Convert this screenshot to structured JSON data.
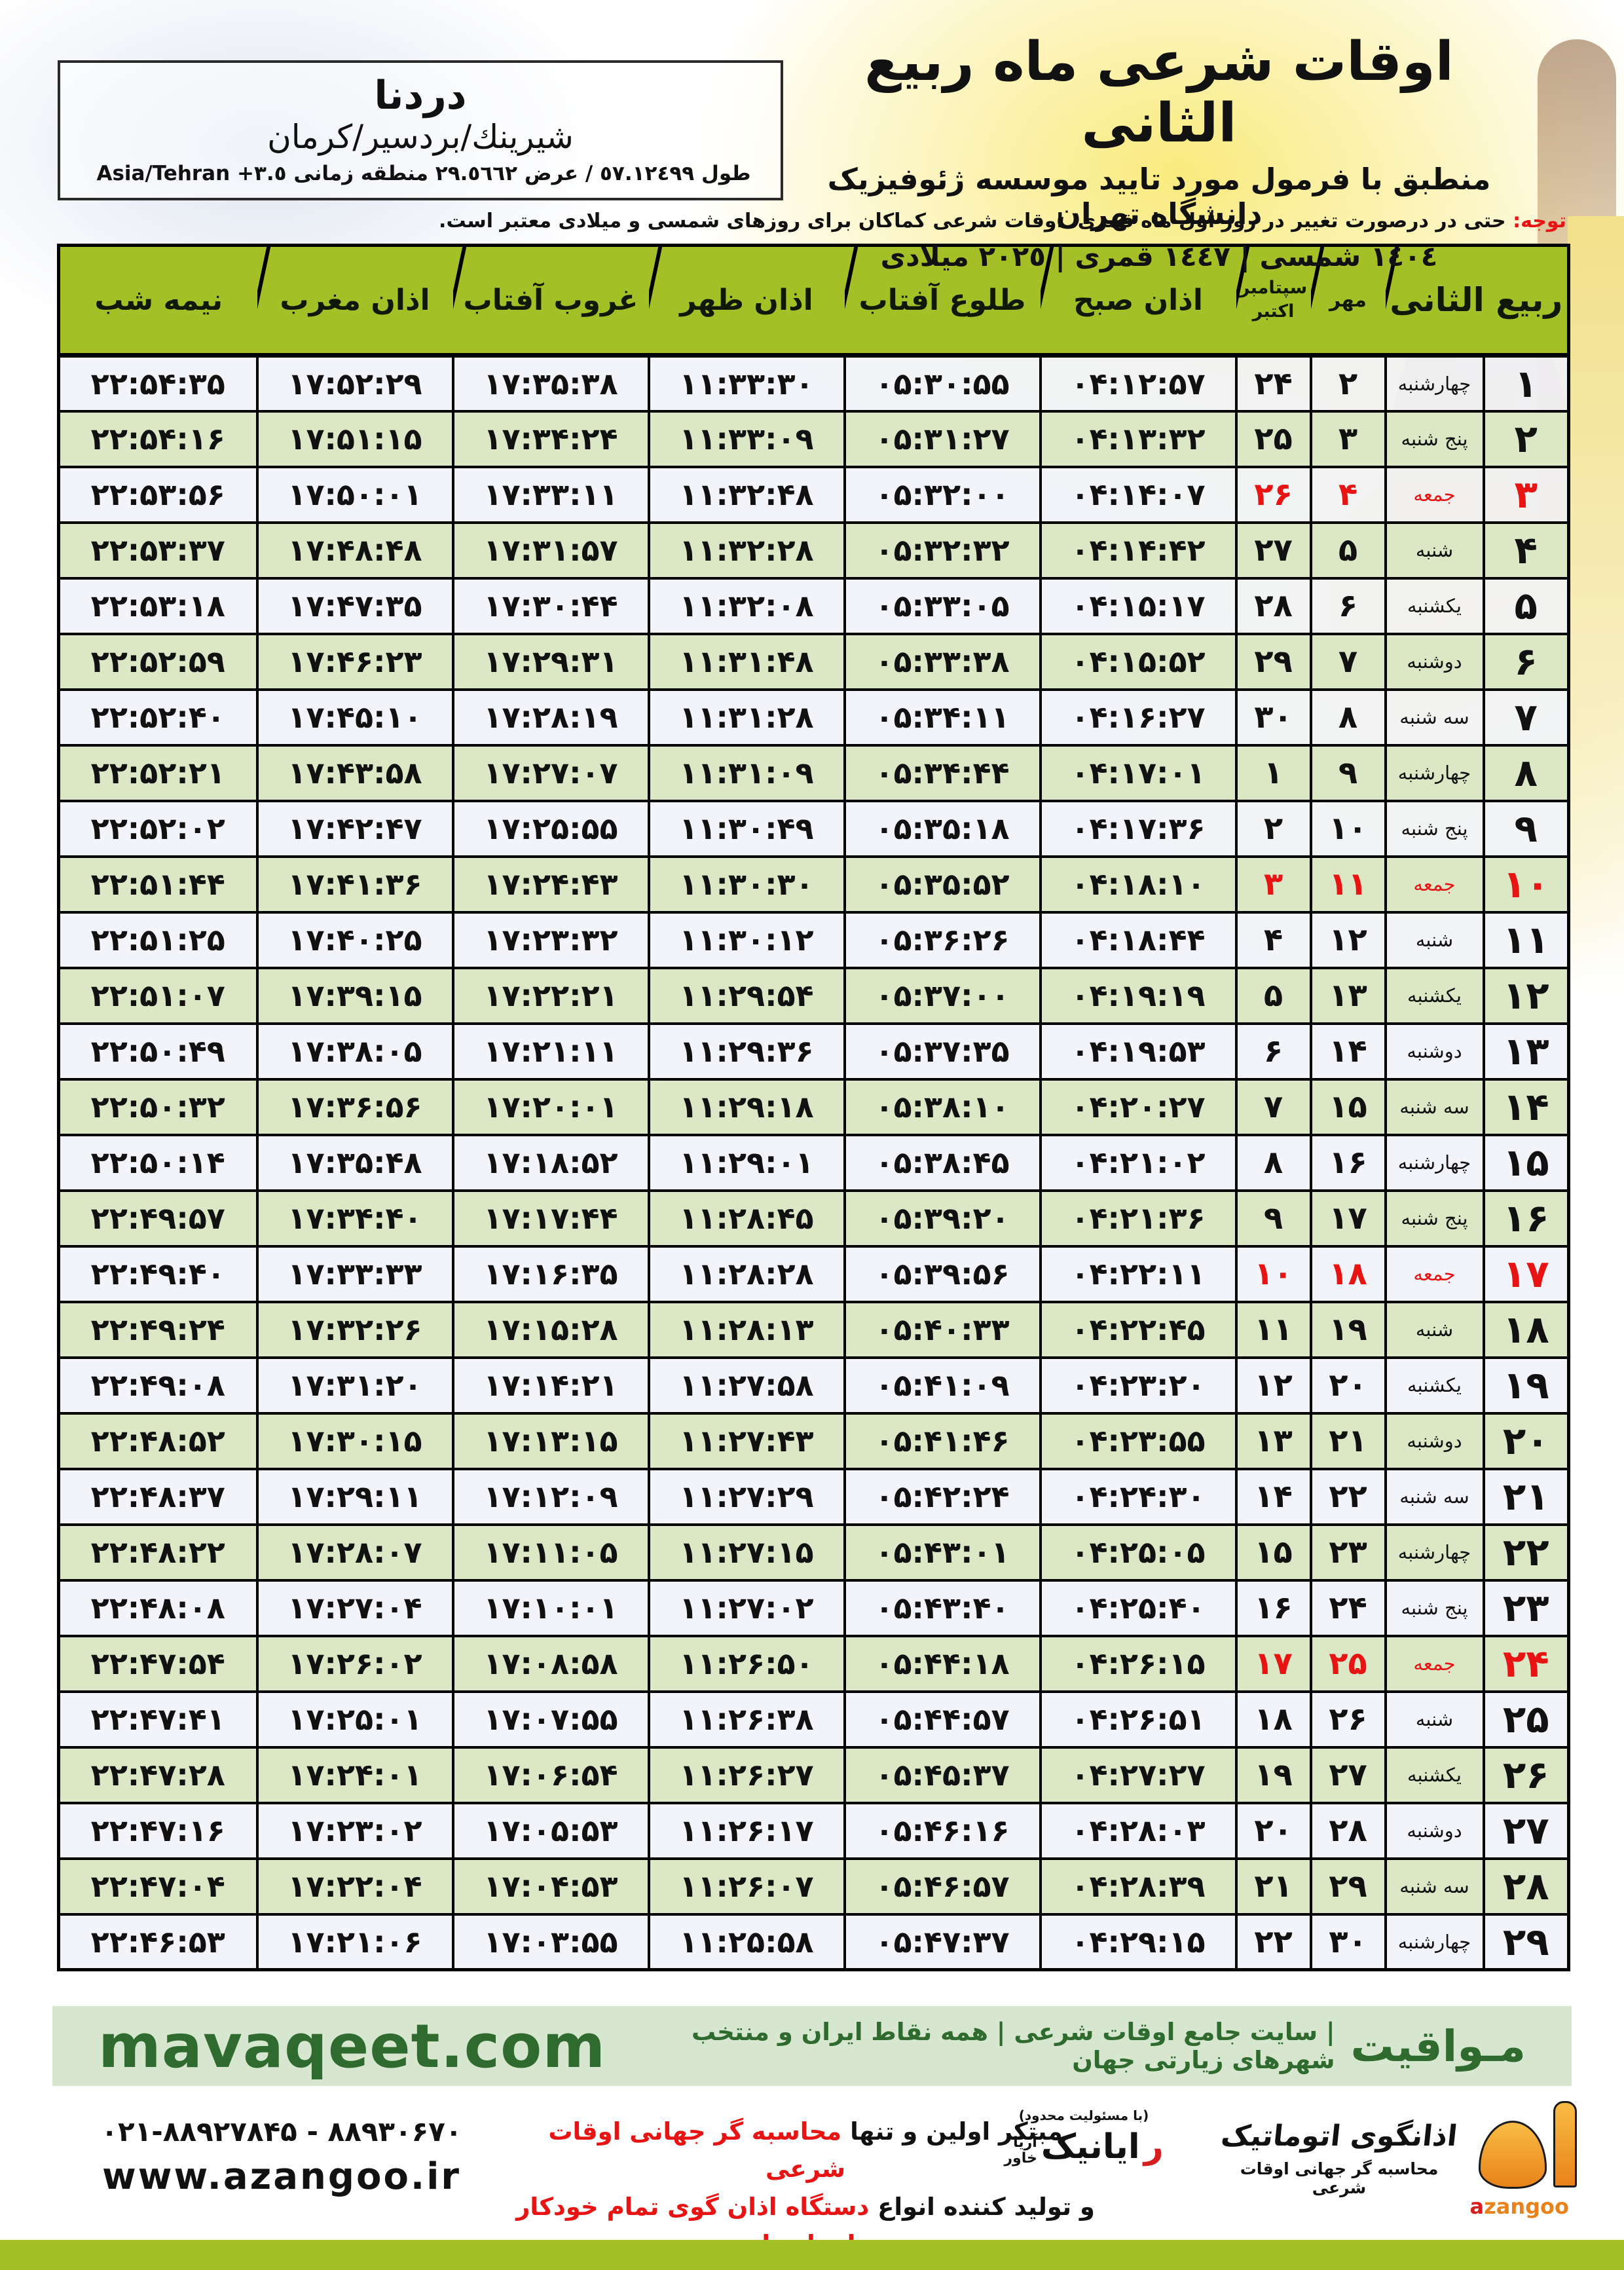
{
  "header": {
    "title": "اوقات شرعی ماه ربیع الثانی",
    "subtitle": "منطبق با فرمول مورد تایید موسسه ژئوفیزیک دانشگاه تهران",
    "date_line": "١٤٠٤ شمسی | ١٤٤٧ قمری | ٢٠٢٥ میلادی"
  },
  "location_box": {
    "name": "دردنا",
    "region": "شیرینك/بردسیر/کرمان",
    "coords": "طول ٥٧.١٢٤٩٩ / عرض ٢٩.٥٦٦٢ منطقه زمانی",
    "timezone": "Asia/Tehran +٣.٥"
  },
  "notice": {
    "label": "توجه:",
    "text": " حتی در درصورت تغییر در روز اول ماه قمری، اوقات شرعی کماکان برای روزهای شمسی و میلادی معتبر است."
  },
  "table": {
    "headers": {
      "rabi": "ربیع الثانی",
      "mehr": "مهر",
      "sep": "سپتامبر",
      "oct": "اکتبر",
      "azan_sobh": "اذان صبح",
      "tolu": "طلوع آفتاب",
      "zohr": "اذان ظهر",
      "ghorub": "غروب آفتاب",
      "maghreb": "اذان مغرب",
      "nimeshab": "نیمه شب"
    },
    "rows": [
      {
        "day": 1,
        "weekday": "چهارشنبه",
        "mehr": 2,
        "greg": 24,
        "sobh": "04:12:57",
        "tolu": "05:30:55",
        "zohr": "11:33:30",
        "ghorub": "17:35:38",
        "maghreb": "17:52:29",
        "nimeshab": "22:54:35",
        "friday": false
      },
      {
        "day": 2,
        "weekday": "پنج شنبه",
        "mehr": 3,
        "greg": 25,
        "sobh": "04:13:32",
        "tolu": "05:31:27",
        "zohr": "11:33:09",
        "ghorub": "17:34:24",
        "maghreb": "17:51:15",
        "nimeshab": "22:54:16",
        "friday": false
      },
      {
        "day": 3,
        "weekday": "جمعه",
        "mehr": 4,
        "greg": 26,
        "sobh": "04:14:07",
        "tolu": "05:32:00",
        "zohr": "11:32:48",
        "ghorub": "17:33:11",
        "maghreb": "17:50:01",
        "nimeshab": "22:53:56",
        "friday": true
      },
      {
        "day": 4,
        "weekday": "شنبه",
        "mehr": 5,
        "greg": 27,
        "sobh": "04:14:42",
        "tolu": "05:32:32",
        "zohr": "11:32:28",
        "ghorub": "17:31:57",
        "maghreb": "17:48:48",
        "nimeshab": "22:53:37",
        "friday": false
      },
      {
        "day": 5,
        "weekday": "یکشنبه",
        "mehr": 6,
        "greg": 28,
        "sobh": "04:15:17",
        "tolu": "05:33:05",
        "zohr": "11:32:08",
        "ghorub": "17:30:44",
        "maghreb": "17:47:35",
        "nimeshab": "22:53:18",
        "friday": false
      },
      {
        "day": 6,
        "weekday": "دوشنبه",
        "mehr": 7,
        "greg": 29,
        "sobh": "04:15:52",
        "tolu": "05:33:38",
        "zohr": "11:31:48",
        "ghorub": "17:29:31",
        "maghreb": "17:46:23",
        "nimeshab": "22:52:59",
        "friday": false
      },
      {
        "day": 7,
        "weekday": "سه شنبه",
        "mehr": 8,
        "greg": 30,
        "sobh": "04:16:27",
        "tolu": "05:34:11",
        "zohr": "11:31:28",
        "ghorub": "17:28:19",
        "maghreb": "17:45:10",
        "nimeshab": "22:52:40",
        "friday": false
      },
      {
        "day": 8,
        "weekday": "چهارشنبه",
        "mehr": 9,
        "greg": 1,
        "sobh": "04:17:01",
        "tolu": "05:34:44",
        "zohr": "11:31:09",
        "ghorub": "17:27:07",
        "maghreb": "17:43:58",
        "nimeshab": "22:52:21",
        "friday": false
      },
      {
        "day": 9,
        "weekday": "پنج شنبه",
        "mehr": 10,
        "greg": 2,
        "sobh": "04:17:36",
        "tolu": "05:35:18",
        "zohr": "11:30:49",
        "ghorub": "17:25:55",
        "maghreb": "17:42:47",
        "nimeshab": "22:52:02",
        "friday": false
      },
      {
        "day": 10,
        "weekday": "جمعه",
        "mehr": 11,
        "greg": 3,
        "sobh": "04:18:10",
        "tolu": "05:35:52",
        "zohr": "11:30:30",
        "ghorub": "17:24:43",
        "maghreb": "17:41:36",
        "nimeshab": "22:51:44",
        "friday": true
      },
      {
        "day": 11,
        "weekday": "شنبه",
        "mehr": 12,
        "greg": 4,
        "sobh": "04:18:44",
        "tolu": "05:36:26",
        "zohr": "11:30:12",
        "ghorub": "17:23:32",
        "maghreb": "17:40:25",
        "nimeshab": "22:51:25",
        "friday": false
      },
      {
        "day": 12,
        "weekday": "یکشنبه",
        "mehr": 13,
        "greg": 5,
        "sobh": "04:19:19",
        "tolu": "05:37:00",
        "zohr": "11:29:54",
        "ghorub": "17:22:21",
        "maghreb": "17:39:15",
        "nimeshab": "22:51:07",
        "friday": false
      },
      {
        "day": 13,
        "weekday": "دوشنبه",
        "mehr": 14,
        "greg": 6,
        "sobh": "04:19:53",
        "tolu": "05:37:35",
        "zohr": "11:29:36",
        "ghorub": "17:21:11",
        "maghreb": "17:38:05",
        "nimeshab": "22:50:49",
        "friday": false
      },
      {
        "day": 14,
        "weekday": "سه شنبه",
        "mehr": 15,
        "greg": 7,
        "sobh": "04:20:27",
        "tolu": "05:38:10",
        "zohr": "11:29:18",
        "ghorub": "17:20:01",
        "maghreb": "17:36:56",
        "nimeshab": "22:50:32",
        "friday": false
      },
      {
        "day": 15,
        "weekday": "چهارشنبه",
        "mehr": 16,
        "greg": 8,
        "sobh": "04:21:02",
        "tolu": "05:38:45",
        "zohr": "11:29:01",
        "ghorub": "17:18:52",
        "maghreb": "17:35:48",
        "nimeshab": "22:50:14",
        "friday": false
      },
      {
        "day": 16,
        "weekday": "پنج شنبه",
        "mehr": 17,
        "greg": 9,
        "sobh": "04:21:36",
        "tolu": "05:39:20",
        "zohr": "11:28:45",
        "ghorub": "17:17:44",
        "maghreb": "17:34:40",
        "nimeshab": "22:49:57",
        "friday": false
      },
      {
        "day": 17,
        "weekday": "جمعه",
        "mehr": 18,
        "greg": 10,
        "sobh": "04:22:11",
        "tolu": "05:39:56",
        "zohr": "11:28:28",
        "ghorub": "17:16:35",
        "maghreb": "17:33:33",
        "nimeshab": "22:49:40",
        "friday": true
      },
      {
        "day": 18,
        "weekday": "شنبه",
        "mehr": 19,
        "greg": 11,
        "sobh": "04:22:45",
        "tolu": "05:40:33",
        "zohr": "11:28:13",
        "ghorub": "17:15:28",
        "maghreb": "17:32:26",
        "nimeshab": "22:49:24",
        "friday": false
      },
      {
        "day": 19,
        "weekday": "یکشنبه",
        "mehr": 20,
        "greg": 12,
        "sobh": "04:23:20",
        "tolu": "05:41:09",
        "zohr": "11:27:58",
        "ghorub": "17:14:21",
        "maghreb": "17:31:20",
        "nimeshab": "22:49:08",
        "friday": false
      },
      {
        "day": 20,
        "weekday": "دوشنبه",
        "mehr": 21,
        "greg": 13,
        "sobh": "04:23:55",
        "tolu": "05:41:46",
        "zohr": "11:27:43",
        "ghorub": "17:13:15",
        "maghreb": "17:30:15",
        "nimeshab": "22:48:52",
        "friday": false
      },
      {
        "day": 21,
        "weekday": "سه شنبه",
        "mehr": 22,
        "greg": 14,
        "sobh": "04:24:30",
        "tolu": "05:42:24",
        "zohr": "11:27:29",
        "ghorub": "17:12:09",
        "maghreb": "17:29:11",
        "nimeshab": "22:48:37",
        "friday": false
      },
      {
        "day": 22,
        "weekday": "چهارشنبه",
        "mehr": 23,
        "greg": 15,
        "sobh": "04:25:05",
        "tolu": "05:43:01",
        "zohr": "11:27:15",
        "ghorub": "17:11:05",
        "maghreb": "17:28:07",
        "nimeshab": "22:48:22",
        "friday": false
      },
      {
        "day": 23,
        "weekday": "پنج شنبه",
        "mehr": 24,
        "greg": 16,
        "sobh": "04:25:40",
        "tolu": "05:43:40",
        "zohr": "11:27:02",
        "ghorub": "17:10:01",
        "maghreb": "17:27:04",
        "nimeshab": "22:48:08",
        "friday": false
      },
      {
        "day": 24,
        "weekday": "جمعه",
        "mehr": 25,
        "greg": 17,
        "sobh": "04:26:15",
        "tolu": "05:44:18",
        "zohr": "11:26:50",
        "ghorub": "17:08:58",
        "maghreb": "17:26:02",
        "nimeshab": "22:47:54",
        "friday": true
      },
      {
        "day": 25,
        "weekday": "شنبه",
        "mehr": 26,
        "greg": 18,
        "sobh": "04:26:51",
        "tolu": "05:44:57",
        "zohr": "11:26:38",
        "ghorub": "17:07:55",
        "maghreb": "17:25:01",
        "nimeshab": "22:47:41",
        "friday": false
      },
      {
        "day": 26,
        "weekday": "یکشنبه",
        "mehr": 27,
        "greg": 19,
        "sobh": "04:27:27",
        "tolu": "05:45:37",
        "zohr": "11:26:27",
        "ghorub": "17:06:54",
        "maghreb": "17:24:01",
        "nimeshab": "22:47:28",
        "friday": false
      },
      {
        "day": 27,
        "weekday": "دوشنبه",
        "mehr": 28,
        "greg": 20,
        "sobh": "04:28:03",
        "tolu": "05:46:16",
        "zohr": "11:26:17",
        "ghorub": "17:05:53",
        "maghreb": "17:23:02",
        "nimeshab": "22:47:16",
        "friday": false
      },
      {
        "day": 28,
        "weekday": "سه شنبه",
        "mehr": 29,
        "greg": 21,
        "sobh": "04:28:39",
        "tolu": "05:46:57",
        "zohr": "11:26:07",
        "ghorub": "17:04:53",
        "maghreb": "17:22:04",
        "nimeshab": "22:47:04",
        "friday": false
      },
      {
        "day": 29,
        "weekday": "چهارشنبه",
        "mehr": 30,
        "greg": 22,
        "sobh": "04:29:15",
        "tolu": "05:47:37",
        "zohr": "11:25:58",
        "ghorub": "17:03:55",
        "maghreb": "17:21:06",
        "nimeshab": "22:46:53",
        "friday": false
      }
    ]
  },
  "footer_band": {
    "url": "mavaqeet.com",
    "brand_fa": "مـواقیت",
    "tagline": "| سایت جامع اوقات شرعی | همه نقاط ایران و منتخب شهرهای زیارتی جهان"
  },
  "bottom": {
    "phones": "۰۲۱-۸۸۹۲۷۸۴۵ - ۸۸۹۳۰۶۷۰",
    "website": "www.azangoo.ir",
    "promo1_black": "مبتکر اولین و تنها ",
    "promo1_red": "محاسبه گر جهانی اوقات شرعی",
    "promo2_black": "و تولید کننده انواع ",
    "promo2_red": "دستگاه اذان گوی تمام خودکار ماهواره ای",
    "rayanik_note": "(با مسئولیت محدود)",
    "rayanik_r": "ر",
    "rayanik_rest": "ایانیک",
    "rayanik_aria": "آریا",
    "rayanik_khavar": "خاور",
    "azangoo_title": "اذانگوی اتوماتیک",
    "azangoo_sub": "محاسبه گر جهانی اوقات شرعی",
    "azangoo_a": "a",
    "azangoo_rest": "zangoo"
  },
  "colors": {
    "chartreuse": "#a5c027",
    "row_green": "#dbe7c5",
    "row_light": "#f0f3f8",
    "friday_red": "#e81414",
    "band_bg": "#d6e6cf",
    "band_text": "#2f6b2f",
    "logo_orange": "#f49a1f"
  }
}
